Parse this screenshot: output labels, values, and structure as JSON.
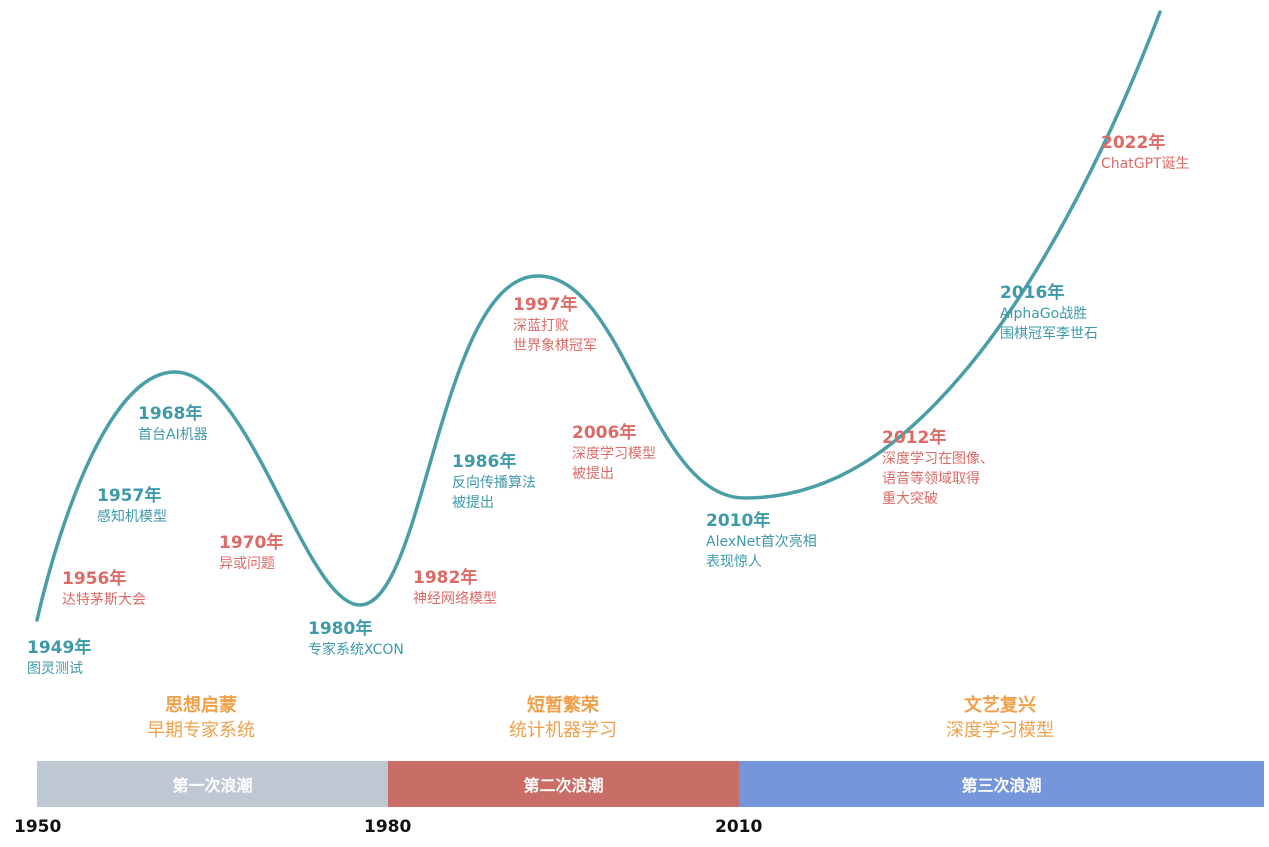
{
  "colors": {
    "curve": "#4a9fa6",
    "teal": "#3e9aa8",
    "red": "#dc6b67",
    "era": "#f0a04b",
    "wave1": "#bec8d2",
    "wave2": "#c96d67",
    "wave3": "#7596da"
  },
  "events": [
    {
      "year": "1949年",
      "lines": [
        "图灵测试"
      ],
      "color": "teal"
    },
    {
      "year": "1956年",
      "lines": [
        "达特茅斯大会"
      ],
      "color": "red"
    },
    {
      "year": "1957年",
      "lines": [
        "感知机模型"
      ],
      "color": "teal"
    },
    {
      "year": "1968年",
      "lines": [
        "首台AI机器"
      ],
      "color": "teal"
    },
    {
      "year": "1970年",
      "lines": [
        "异或问题"
      ],
      "color": "red"
    },
    {
      "year": "1980年",
      "lines": [
        "专家系统XCON"
      ],
      "color": "teal"
    },
    {
      "year": "1982年",
      "lines": [
        "神经网络模型"
      ],
      "color": "red"
    },
    {
      "year": "1986年",
      "lines": [
        "反向传播算法",
        "被提出"
      ],
      "color": "teal"
    },
    {
      "year": "1997年",
      "lines": [
        "深蓝打败",
        "世界象棋冠军"
      ],
      "color": "red"
    },
    {
      "year": "2006年",
      "lines": [
        "深度学习模型",
        "被提出"
      ],
      "color": "red"
    },
    {
      "year": "2010年",
      "lines": [
        "AlexNet首次亮相",
        "表现惊人"
      ],
      "color": "teal"
    },
    {
      "year": "2012年",
      "lines": [
        "深度学习在图像、",
        "语音等领域取得",
        "重大突破"
      ],
      "color": "red"
    },
    {
      "year": "2016年",
      "lines": [
        "AlphaGo战胜",
        "围棋冠军李世石"
      ],
      "color": "teal"
    },
    {
      "year": "2022年",
      "lines": [
        "ChatGPT诞生"
      ],
      "color": "red"
    }
  ],
  "eras": [
    {
      "title": "思想启蒙",
      "subtitle": "早期专家系统"
    },
    {
      "title": "短暂繁荣",
      "subtitle": "统计机器学习"
    },
    {
      "title": "文艺复兴",
      "subtitle": "深度学习模型"
    }
  ],
  "waves": [
    {
      "label": "第一次浪潮",
      "color": "wave1"
    },
    {
      "label": "第二次浪潮",
      "color": "wave2"
    },
    {
      "label": "第三次浪潮",
      "color": "wave3"
    }
  ],
  "axis_years": [
    "1950",
    "1980",
    "2010"
  ]
}
